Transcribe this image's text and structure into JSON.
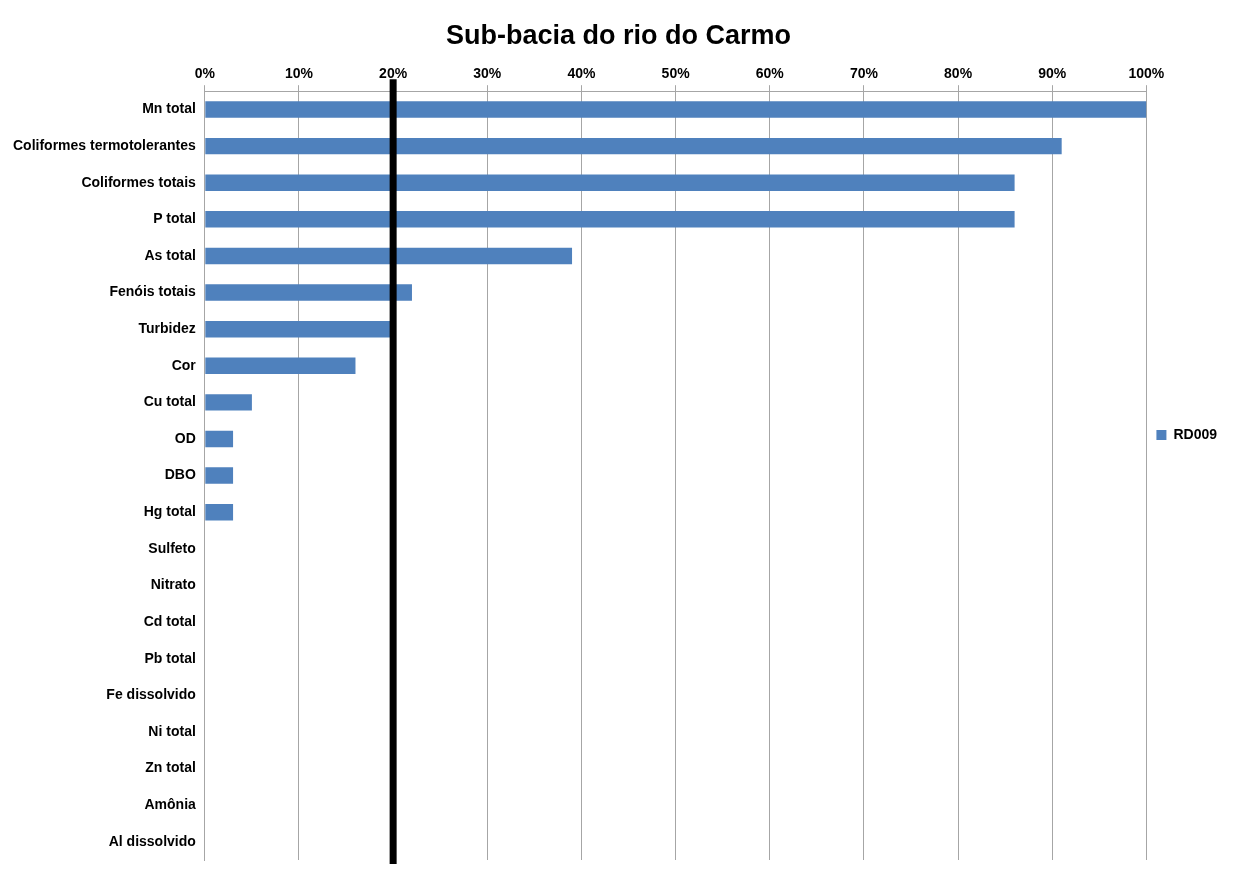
{
  "chart_data": {
    "type": "bar",
    "orientation": "horizontal",
    "title": "Sub-bacia do rio do Carmo",
    "categories": [
      "Mn total",
      "Coliformes termotolerantes",
      "Coliformes totais",
      "P total",
      "As total",
      "Fenóis totais",
      "Turbidez",
      "Cor",
      "Cu total",
      "OD",
      "DBO",
      "Hg total",
      "Sulfeto",
      "Nitrato",
      "Cd total",
      "Pb total",
      "Fe dissolvido",
      "Ni total",
      "Zn total",
      "Amônia",
      "Al dissolvido"
    ],
    "series": [
      {
        "name": "RD009",
        "color": "#4f81bd",
        "values": [
          100,
          91,
          86,
          86,
          39,
          22,
          20,
          16,
          5,
          3,
          3,
          3,
          0,
          0,
          0,
          0,
          0,
          0,
          0,
          0,
          0
        ]
      }
    ],
    "xlim": [
      0,
      100
    ],
    "xticks": [
      {
        "value": 0,
        "label": "0%"
      },
      {
        "value": 10,
        "label": "10%"
      },
      {
        "value": 20,
        "label": "20%"
      },
      {
        "value": 30,
        "label": "30%"
      },
      {
        "value": 40,
        "label": "40%"
      },
      {
        "value": 50,
        "label": "50%"
      },
      {
        "value": 60,
        "label": "60%"
      },
      {
        "value": 70,
        "label": "70%"
      },
      {
        "value": 80,
        "label": "80%"
      },
      {
        "value": 90,
        "label": "90%"
      },
      {
        "value": 100,
        "label": "100%"
      }
    ],
    "ref_lines": [
      {
        "axis": "x",
        "value": 20,
        "color": "#000000"
      }
    ],
    "grid": "x",
    "legend": "right"
  }
}
